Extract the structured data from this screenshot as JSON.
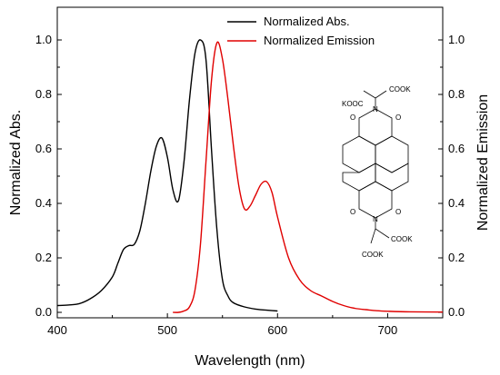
{
  "chart_data": {
    "type": "line",
    "xlabel": "Wavelength (nm)",
    "ylabel_left": "Normalized Abs.",
    "ylabel_right": "Normalized Emission",
    "xlim": [
      400,
      750
    ],
    "ylim": [
      -0.02,
      1.12
    ],
    "x_ticks": [
      400,
      500,
      600,
      700
    ],
    "x_tick_labels": [
      "400",
      "500",
      "600",
      "700"
    ],
    "y_ticks": [
      0.0,
      0.2,
      0.4,
      0.6,
      0.8,
      1.0
    ],
    "y_tick_labels": [
      "0.0",
      "0.2",
      "0.4",
      "0.6",
      "0.8",
      "1.0"
    ],
    "legend_position": "top-right",
    "series": [
      {
        "name": "Normalized Abs.",
        "color": "#000000",
        "x": [
          400,
          410,
          420,
          430,
          440,
          450,
          455,
          460,
          465,
          470,
          475,
          480,
          485,
          490,
          495,
          500,
          505,
          510,
          515,
          520,
          525,
          530,
          535,
          540,
          545,
          550,
          555,
          560,
          570,
          580,
          590,
          600
        ],
        "y": [
          0.025,
          0.027,
          0.032,
          0.05,
          0.08,
          0.13,
          0.18,
          0.23,
          0.245,
          0.25,
          0.3,
          0.4,
          0.52,
          0.61,
          0.64,
          0.57,
          0.45,
          0.41,
          0.55,
          0.78,
          0.95,
          1.0,
          0.93,
          0.6,
          0.3,
          0.12,
          0.06,
          0.035,
          0.02,
          0.012,
          0.008,
          0.005
        ]
      },
      {
        "name": "Normalized Emission",
        "color": "#e00000",
        "x": [
          505,
          510,
          515,
          520,
          525,
          530,
          535,
          540,
          545,
          550,
          555,
          560,
          565,
          570,
          575,
          580,
          585,
          590,
          595,
          600,
          610,
          620,
          630,
          640,
          650,
          660,
          670,
          680,
          690,
          700,
          720,
          750
        ],
        "y": [
          0.0,
          0.0,
          0.005,
          0.02,
          0.08,
          0.25,
          0.55,
          0.85,
          0.99,
          0.93,
          0.78,
          0.61,
          0.46,
          0.38,
          0.39,
          0.43,
          0.47,
          0.48,
          0.44,
          0.35,
          0.2,
          0.12,
          0.08,
          0.06,
          0.04,
          0.025,
          0.015,
          0.01,
          0.006,
          0.004,
          0.002,
          0.001
        ]
      }
    ]
  },
  "molecule": {
    "labels": [
      "COOK",
      "KOOC",
      "O",
      "N",
      "O",
      "O",
      "N",
      "O",
      "COOK",
      "COOK"
    ]
  }
}
